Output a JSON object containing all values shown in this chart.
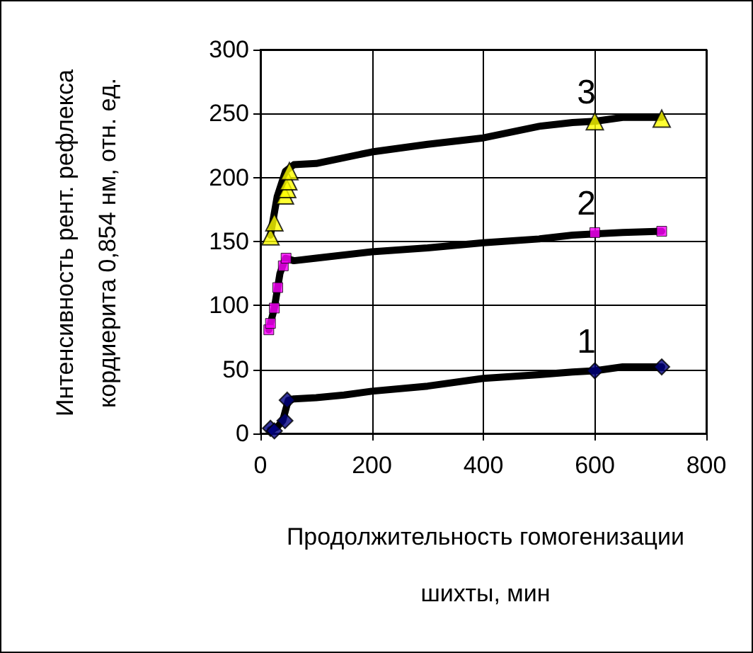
{
  "chart_data": {
    "type": "line",
    "xlabel": "Продолжительность гомогенизации\nшихты, мин",
    "ylabel": "Интенсивность рент. рефлекса\nкордиерита 0,854 нм, отн. ед.",
    "xlim": [
      0,
      800
    ],
    "xticks": [
      0,
      200,
      400,
      600,
      800
    ],
    "ylim": [
      0,
      300
    ],
    "yticks": [
      0,
      50,
      100,
      150,
      200,
      250,
      300
    ],
    "grid": true,
    "series": [
      {
        "color": "#000000",
        "marker": "none",
        "x": [
          18,
          30,
          40,
          50,
          60,
          100,
          150,
          200,
          300,
          400,
          500,
          560,
          600,
          650,
          720
        ],
        "values": [
          3,
          5,
          10,
          26,
          27,
          28,
          30,
          33,
          37,
          43,
          46,
          48,
          49,
          52,
          52
        ]
      },
      {
        "color": "#000000",
        "marker": "none",
        "x": [
          15,
          25,
          35,
          45,
          60,
          100,
          200,
          300,
          400,
          500,
          560,
          600,
          650,
          720
        ],
        "values": [
          81,
          98,
          125,
          137,
          135,
          137,
          142,
          145,
          149,
          152,
          155,
          156,
          157,
          158
        ]
      },
      {
        "color": "#000000",
        "marker": "none",
        "x": [
          18,
          30,
          45,
          60,
          100,
          200,
          300,
          400,
          500,
          560,
          600,
          650,
          720
        ],
        "values": [
          155,
          185,
          205,
          210,
          211,
          220,
          226,
          231,
          240,
          243,
          244,
          247,
          247
        ]
      },
      {
        "type": "scatter",
        "color": "#000080",
        "marker": "diamond",
        "x": [
          18,
          25,
          44,
          48,
          600,
          720
        ],
        "values": [
          4,
          2,
          10,
          26,
          49,
          52
        ]
      },
      {
        "type": "scatter",
        "color": "#ff00ff",
        "marker": "square",
        "x": [
          15,
          18,
          25,
          31,
          41,
          46,
          600,
          720
        ],
        "values": [
          81,
          86,
          98,
          114,
          131,
          137,
          157,
          158
        ]
      },
      {
        "type": "scatter",
        "color": "#ffff00",
        "marker": "triangle",
        "x": [
          18,
          25,
          44,
          48,
          50,
          52,
          600,
          720
        ],
        "values": [
          154,
          165,
          186,
          191,
          197,
          205,
          244,
          246
        ]
      }
    ],
    "annotations": [
      "1",
      "2",
      "3"
    ]
  }
}
